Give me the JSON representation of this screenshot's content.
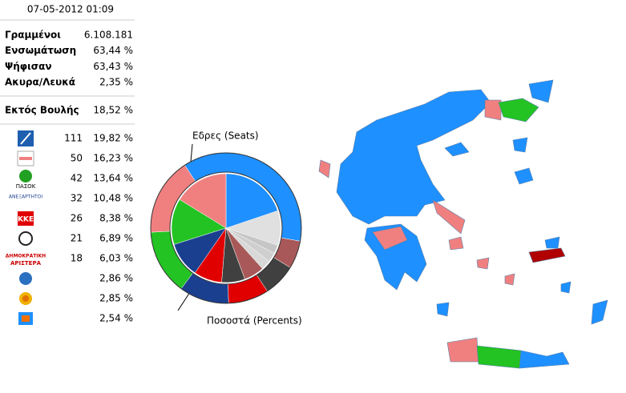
{
  "header": {
    "timestamp": "07-05-2012 01:09"
  },
  "summary": {
    "rows": [
      [
        "Γραμμένοι",
        "6.108.181"
      ],
      [
        "Ενσωμάτωση",
        "63,44 %"
      ],
      [
        "Ψήφισαν",
        "63,43 %"
      ],
      [
        "Ακυρα/Λευκά",
        "2,35 %"
      ]
    ],
    "outside": [
      "Εκτός Βουλής",
      "18,52 %"
    ]
  },
  "chart_data": {
    "type": "pie",
    "colors": [
      "#1e90ff",
      "#f08080",
      "#22c322",
      "#1a3f8f",
      "#e00000",
      "#404040",
      "#a85858",
      "#d8d8d8",
      "#cfcfcf",
      "#c6c6c6"
    ],
    "series": [
      {
        "name": "Εδρες (Seats)",
        "values": [
          111,
          50,
          42,
          32,
          26,
          21,
          18,
          null,
          null,
          null
        ]
      },
      {
        "name": "Ποσοστά (Percents)",
        "values": [
          19.82,
          16.23,
          13.64,
          10.48,
          8.38,
          6.89,
          6.03,
          2.86,
          2.85,
          2.54
        ],
        "value_labels": [
          "19,82 %",
          "16,23 %",
          "13,64 %",
          "10,48 %",
          "8,38 %",
          "6,89 %",
          "6,03 %",
          "2,86 %",
          "2,85 %",
          "2,54 %"
        ]
      }
    ]
  }
}
